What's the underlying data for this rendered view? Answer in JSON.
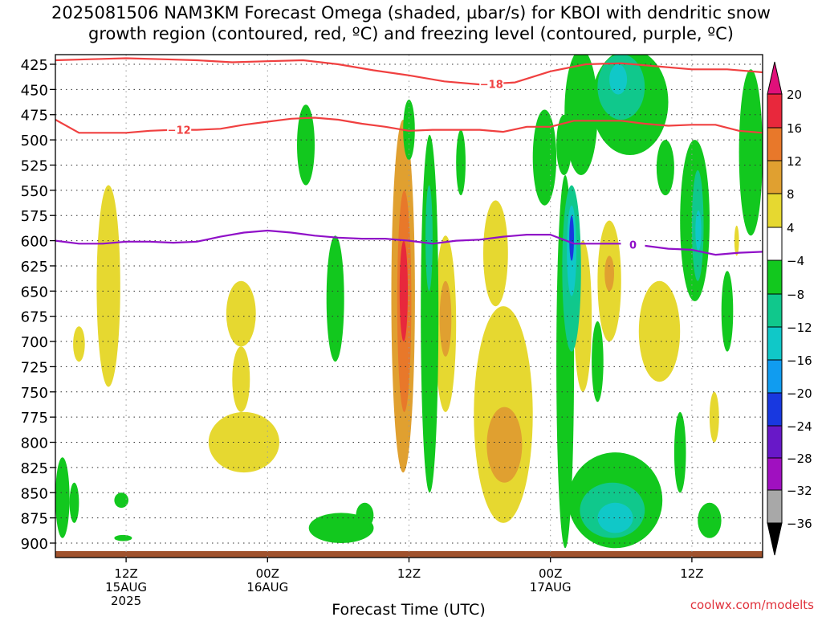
{
  "title": {
    "line1": "2025081506 NAM3KM Forecast Omega (shaded, µbar/s) for KBOI with dendritic snow",
    "line2": "growth region (contoured, red, ºC) and freezing level (contoured, purple, ºC)"
  },
  "credit": "coolwx.com/modelts",
  "chart_data": {
    "type": "heatmap",
    "title": "2025081506 NAM3KM Forecast Omega (shaded, µbar/s) for KBOI with dendritic snow growth region (contoured, red, ºC) and freezing level (contoured, purple, ºC)",
    "xlabel": "Forecast Time (UTC)",
    "ylabel": "",
    "x_unit": "hours from 2025-08-15 06Z",
    "xlim": [
      0,
      60
    ],
    "ylim": [
      425,
      910
    ],
    "y_inverted": true,
    "grid": true,
    "y_ticks": [
      425,
      450,
      475,
      500,
      525,
      550,
      575,
      600,
      625,
      650,
      675,
      700,
      725,
      750,
      775,
      800,
      825,
      850,
      875,
      900
    ],
    "x_ticks": [
      {
        "x": 6,
        "label": "12Z",
        "sub1": "15AUG",
        "sub2": "2025"
      },
      {
        "x": 18,
        "label": "00Z",
        "sub1": "16AUG",
        "sub2": ""
      },
      {
        "x": 30,
        "label": "12Z",
        "sub1": "",
        "sub2": ""
      },
      {
        "x": 42,
        "label": "00Z",
        "sub1": "17AUG",
        "sub2": ""
      },
      {
        "x": 54,
        "label": "12Z",
        "sub1": "",
        "sub2": ""
      }
    ],
    "colorbar": {
      "labels": [
        "20",
        "16",
        "12",
        "8",
        "4",
        "-4",
        "-8",
        "-12",
        "-16",
        "-20",
        "-24",
        "-28",
        "-32",
        "-36"
      ],
      "bins": [
        {
          "lo": 16,
          "hi": 20,
          "color": "#e8283c"
        },
        {
          "lo": 12,
          "hi": 16,
          "color": "#e8782a"
        },
        {
          "lo": 8,
          "hi": 12,
          "color": "#e0a030"
        },
        {
          "lo": 4,
          "hi": 8,
          "color": "#e6d830"
        },
        {
          "lo": -4,
          "hi": 4,
          "color": "#ffffff"
        },
        {
          "lo": -8,
          "hi": -4,
          "color": "#12c81e"
        },
        {
          "lo": -12,
          "hi": -8,
          "color": "#10c88c"
        },
        {
          "lo": -16,
          "hi": -12,
          "color": "#10c8c8"
        },
        {
          "lo": -20,
          "hi": -16,
          "color": "#109cf0"
        },
        {
          "lo": -24,
          "hi": -20,
          "color": "#1838e0"
        },
        {
          "lo": -28,
          "hi": -24,
          "color": "#6818c8"
        },
        {
          "lo": -32,
          "hi": -28,
          "color": "#a010c0"
        },
        {
          "lo": -36,
          "hi": -32,
          "color": "#a8a8a8"
        }
      ],
      "over_color": "#e0107a",
      "under_color": "#000000"
    },
    "omega_cells": [
      {
        "t0": 3.5,
        "t1": 5.5,
        "p0": 545,
        "p1": 745,
        "value": 6
      },
      {
        "t0": 1.5,
        "t1": 2.5,
        "p0": 685,
        "p1": 720,
        "value": 6
      },
      {
        "t0": 14.5,
        "t1": 17,
        "p0": 640,
        "p1": 705,
        "value": 6
      },
      {
        "t0": 15,
        "t1": 16.5,
        "p0": 705,
        "p1": 770,
        "value": 6
      },
      {
        "t0": 13,
        "t1": 19,
        "p0": 770,
        "p1": 830,
        "value": 6
      },
      {
        "t0": 28.5,
        "t1": 30.5,
        "p0": 480,
        "p1": 830,
        "value": 8
      },
      {
        "t0": 29,
        "t1": 30.2,
        "p0": 550,
        "p1": 770,
        "value": 13
      },
      {
        "t0": 29.2,
        "t1": 29.9,
        "p0": 600,
        "p1": 700,
        "value": 18
      },
      {
        "t0": 32.2,
        "t1": 34,
        "p0": 595,
        "p1": 770,
        "value": 6
      },
      {
        "t0": 32.6,
        "t1": 33.6,
        "p0": 640,
        "p1": 715,
        "value": 10
      },
      {
        "t0": 36.3,
        "t1": 38.4,
        "p0": 560,
        "p1": 665,
        "value": 6
      },
      {
        "t0": 35.5,
        "t1": 40.5,
        "p0": 665,
        "p1": 880,
        "value": 6
      },
      {
        "t0": 36.6,
        "t1": 39.6,
        "p0": 765,
        "p1": 840,
        "value": 10
      },
      {
        "t0": 44,
        "t1": 45.5,
        "p0": 600,
        "p1": 750,
        "value": 6
      },
      {
        "t0": 46,
        "t1": 48,
        "p0": 580,
        "p1": 700,
        "value": 6
      },
      {
        "t0": 46.6,
        "t1": 47.4,
        "p0": 615,
        "p1": 650,
        "value": 10
      },
      {
        "t0": 49.5,
        "t1": 53,
        "p0": 640,
        "p1": 740,
        "value": 6
      },
      {
        "t0": 55.5,
        "t1": 56.3,
        "p0": 750,
        "p1": 800,
        "value": 6
      },
      {
        "t0": 57.6,
        "t1": 58,
        "p0": 585,
        "p1": 615,
        "value": 6
      },
      {
        "t0": 20.5,
        "t1": 22,
        "p0": 465,
        "p1": 545,
        "value": -6
      },
      {
        "t0": 23,
        "t1": 24.5,
        "p0": 595,
        "p1": 720,
        "value": -6
      },
      {
        "t0": 21.5,
        "t1": 27,
        "p0": 870,
        "p1": 900,
        "value": -6
      },
      {
        "t0": 25.5,
        "t1": 27,
        "p0": 860,
        "p1": 885,
        "value": -6
      },
      {
        "t0": 29.5,
        "t1": 30.5,
        "p0": 460,
        "p1": 520,
        "value": -6
      },
      {
        "t0": 31,
        "t1": 32.5,
        "p0": 495,
        "p1": 850,
        "value": -6
      },
      {
        "t0": 31.4,
        "t1": 32,
        "p0": 545,
        "p1": 650,
        "value": -10
      },
      {
        "t0": 34,
        "t1": 34.8,
        "p0": 490,
        "p1": 555,
        "value": -6
      },
      {
        "t0": 40.5,
        "t1": 42.5,
        "p0": 470,
        "p1": 565,
        "value": -6
      },
      {
        "t0": 42.5,
        "t1": 43.8,
        "p0": 475,
        "p1": 535,
        "value": -6
      },
      {
        "t0": 42.5,
        "t1": 44,
        "p0": 535,
        "p1": 905,
        "value": -6
      },
      {
        "t0": 43.2,
        "t1": 46,
        "p0": 410,
        "p1": 535,
        "value": -6
      },
      {
        "t0": 45.5,
        "t1": 52,
        "p0": 410,
        "p1": 515,
        "value": -6
      },
      {
        "t0": 46,
        "t1": 50,
        "p0": 415,
        "p1": 480,
        "value": -10
      },
      {
        "t0": 47,
        "t1": 48.5,
        "p0": 425,
        "p1": 455,
        "value": -14
      },
      {
        "t0": 43,
        "t1": 44.6,
        "p0": 545,
        "p1": 710,
        "value": -10
      },
      {
        "t0": 43.4,
        "t1": 44.2,
        "p0": 565,
        "p1": 655,
        "value": -14
      },
      {
        "t0": 43.6,
        "t1": 44,
        "p0": 575,
        "p1": 620,
        "value": -22
      },
      {
        "t0": 43.5,
        "t1": 51.5,
        "p0": 810,
        "p1": 905,
        "value": -6
      },
      {
        "t0": 44.5,
        "t1": 50,
        "p0": 840,
        "p1": 895,
        "value": -10
      },
      {
        "t0": 46,
        "t1": 49,
        "p0": 860,
        "p1": 890,
        "value": -14
      },
      {
        "t0": 45.5,
        "t1": 46.5,
        "p0": 680,
        "p1": 760,
        "value": -6
      },
      {
        "t0": 51,
        "t1": 52.5,
        "p0": 500,
        "p1": 555,
        "value": -6
      },
      {
        "t0": 53,
        "t1": 55.5,
        "p0": 500,
        "p1": 660,
        "value": -6
      },
      {
        "t0": 54,
        "t1": 55,
        "p0": 530,
        "p1": 640,
        "value": -10
      },
      {
        "t0": 54.3,
        "t1": 54.8,
        "p0": 570,
        "p1": 610,
        "value": -14
      },
      {
        "t0": 52.5,
        "t1": 53.5,
        "p0": 770,
        "p1": 850,
        "value": -6
      },
      {
        "t0": 54.5,
        "t1": 56.5,
        "p0": 860,
        "p1": 895,
        "value": -6
      },
      {
        "t0": 56.5,
        "t1": 57.5,
        "p0": 630,
        "p1": 710,
        "value": -6
      },
      {
        "t0": 58,
        "t1": 60,
        "p0": 430,
        "p1": 595,
        "value": -6
      },
      {
        "t0": 0,
        "t1": 1.2,
        "p0": 815,
        "p1": 895,
        "value": -6
      },
      {
        "t0": 1.2,
        "t1": 2,
        "p0": 840,
        "p1": 880,
        "value": -6
      },
      {
        "t0": 5,
        "t1": 6.2,
        "p0": 850,
        "p1": 865,
        "value": -6
      },
      {
        "t0": 5,
        "t1": 6.5,
        "p0": 892,
        "p1": 898,
        "value": -6
      }
    ],
    "series": [
      {
        "name": "-18",
        "color": "#f04040",
        "x": [
          0,
          3,
          6,
          9,
          12,
          15,
          18,
          21,
          24,
          27,
          30,
          33,
          36,
          39,
          42,
          45,
          48,
          51,
          54,
          57,
          60
        ],
        "y": [
          421,
          420,
          419,
          420,
          421,
          423,
          422,
          421,
          425,
          431,
          436,
          442,
          445,
          443,
          432,
          425,
          424,
          427,
          430,
          430,
          433
        ],
        "label_x": 37
      },
      {
        "name": "-12",
        "color": "#f04040",
        "x": [
          0,
          2,
          4,
          6,
          8,
          10,
          12,
          14,
          16,
          18,
          20,
          22,
          24,
          26,
          28,
          30,
          32,
          34,
          36,
          38,
          40,
          42,
          44,
          46,
          48,
          50,
          52,
          54,
          56,
          58,
          60
        ],
        "y": [
          480,
          493,
          493,
          493,
          491,
          490,
          490,
          489,
          485,
          482,
          479,
          478,
          480,
          484,
          487,
          491,
          490,
          490,
          490,
          492,
          487,
          487,
          481,
          481,
          481,
          484,
          486,
          485,
          485,
          491,
          493
        ],
        "label_x": 10.5
      },
      {
        "name": "0",
        "color": "#9010c8",
        "x": [
          0,
          2,
          4,
          6,
          8,
          10,
          12,
          14,
          16,
          18,
          20,
          22,
          24,
          26,
          28,
          30,
          32,
          34,
          36,
          38,
          40,
          42,
          44,
          46,
          48,
          50,
          52,
          54,
          56,
          58,
          60
        ],
        "y": [
          600,
          603,
          603,
          601,
          601,
          602,
          601,
          596,
          592,
          590,
          592,
          595,
          597,
          598,
          598,
          600,
          603,
          600,
          599,
          596,
          594,
          594,
          603,
          603,
          603,
          605,
          608,
          609,
          614,
          612,
          611
        ],
        "label_x": 49
      }
    ],
    "ground_color": "#a0522d"
  }
}
